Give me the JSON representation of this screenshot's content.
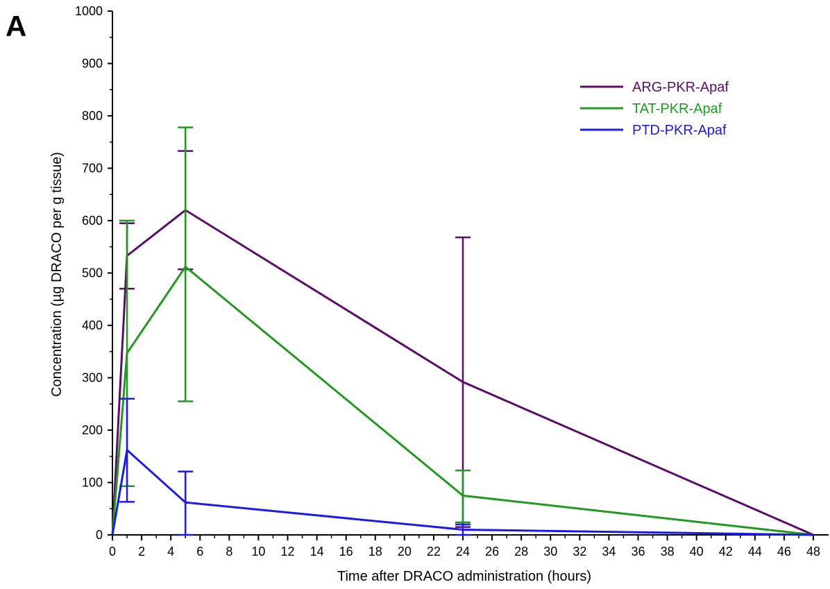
{
  "panel_label": "A",
  "chart_data": {
    "type": "line",
    "title": "",
    "xlabel": "Time after DRACO administration (hours)",
    "ylabel": "Concentration (µg DRACO per g tissue)",
    "xlim": [
      0,
      48
    ],
    "ylim": [
      0,
      1000
    ],
    "xticks": [
      0,
      2,
      4,
      6,
      8,
      10,
      12,
      14,
      16,
      18,
      20,
      22,
      24,
      26,
      28,
      30,
      32,
      34,
      36,
      38,
      40,
      42,
      44,
      46,
      48
    ],
    "yticks": [
      0,
      100,
      200,
      300,
      400,
      500,
      600,
      700,
      800,
      900,
      1000
    ],
    "grid": false,
    "legend_position": "top-right",
    "series": [
      {
        "name": "ARG-PKR-Apaf",
        "color": "#5c0a6b",
        "x": [
          0,
          1,
          5,
          24,
          48
        ],
        "y": [
          0,
          533,
          620,
          292,
          0
        ],
        "err_low": [
          null,
          470,
          507,
          15,
          null
        ],
        "err_high": [
          null,
          595,
          733,
          568,
          null
        ]
      },
      {
        "name": "TAT-PKR-Apaf",
        "color": "#1f9a1f",
        "x": [
          0,
          1,
          5,
          24,
          48
        ],
        "y": [
          0,
          347,
          512,
          75,
          0
        ],
        "err_low": [
          null,
          93,
          255,
          24,
          null
        ],
        "err_high": [
          null,
          600,
          778,
          123,
          null
        ]
      },
      {
        "name": "PTD-PKR-Apaf",
        "color": "#1a1aee",
        "x": [
          0,
          1,
          5,
          24,
          48
        ],
        "y": [
          0,
          162,
          62,
          10,
          0
        ],
        "err_low": [
          null,
          63,
          0,
          0,
          null
        ],
        "err_high": [
          null,
          260,
          121,
          20,
          null
        ]
      }
    ]
  }
}
